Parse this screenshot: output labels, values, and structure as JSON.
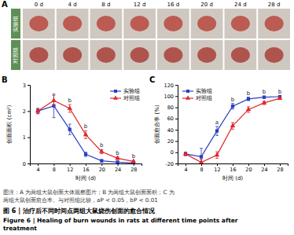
{
  "figure": {
    "panel_a": {
      "label": "A",
      "days": [
        "0 d",
        "4 d",
        "8 d",
        "12 d",
        "16 d",
        "20 d",
        "24 d",
        "28 d"
      ],
      "groups": [
        "实验组",
        "对照组"
      ]
    },
    "caption": {
      "note_lines": [
        "图注：A 为两组大鼠创面大体观察图片；B 为两组大鼠创面面积；C 为",
        "两组大鼠创面愈合率。与对照组比较，aP < 0.05，bP < 0.01"
      ],
      "title_cn": "图 6 | 治疗后不同时间点两组大鼠烧伤创面的愈合情况",
      "title_en_lines": [
        "Figure 6 | Healing of burn wounds in rats at different time points after",
        "treatment"
      ]
    }
  },
  "chart_data": [
    {
      "type": "line",
      "label": "B",
      "x_label": "时间 (d)",
      "y_label": "创面面积 (cm²)",
      "x": [
        4,
        8,
        12,
        16,
        20,
        24,
        28
      ],
      "xlim": [
        2,
        30
      ],
      "xticks": [
        4,
        8,
        12,
        16,
        20,
        24,
        28
      ],
      "ylim": [
        0,
        3
      ],
      "yticks": [
        0,
        1,
        2,
        3
      ],
      "legend": "top-right",
      "series": [
        {
          "name": "实验组",
          "color": "#2a3fc4",
          "marker": "square",
          "values": [
            2.0,
            2.2,
            1.3,
            0.35,
            0.1,
            0.05,
            0.02
          ],
          "errors": [
            0.1,
            0.45,
            0.2,
            0.08,
            0.05,
            0.03,
            0.02
          ]
        },
        {
          "name": "对照组",
          "color": "#e0262a",
          "marker": "triangle",
          "values": [
            2.0,
            2.4,
            2.1,
            1.1,
            0.45,
            0.2,
            0.08
          ],
          "errors": [
            0.1,
            0.2,
            0.15,
            0.15,
            0.08,
            0.05,
            0.03
          ]
        }
      ],
      "annotations": [
        {
          "x": 12,
          "text": "b"
        },
        {
          "x": 16,
          "text": "b"
        },
        {
          "x": 20,
          "text": "b"
        },
        {
          "x": 24,
          "text": "b"
        },
        {
          "x": 28,
          "text": "b"
        }
      ]
    },
    {
      "type": "line",
      "label": "C",
      "x_label": "时间 (d)",
      "y_label": "创面愈合率 (%)",
      "x": [
        4,
        8,
        12,
        16,
        20,
        24,
        28
      ],
      "xlim": [
        2,
        30
      ],
      "xticks": [
        4,
        8,
        12,
        16,
        20,
        24,
        28
      ],
      "ylim": [
        -20,
        120
      ],
      "yticks": [
        -20,
        0,
        20,
        40,
        60,
        80,
        100,
        120
      ],
      "legend": "top-left",
      "series": [
        {
          "name": "实验组",
          "color": "#2a3fc4",
          "marker": "square",
          "values": [
            -3,
            -8,
            38,
            82,
            95,
            98,
            99
          ],
          "errors": [
            3,
            15,
            8,
            5,
            3,
            2,
            1
          ]
        },
        {
          "name": "对照组",
          "color": "#e0262a",
          "marker": "triangle",
          "values": [
            -3,
            -18,
            -5,
            47,
            76,
            88,
            96
          ],
          "errors": [
            3,
            6,
            6,
            6,
            5,
            3,
            2
          ]
        }
      ],
      "annotations": [
        {
          "x": 12,
          "text": "a"
        },
        {
          "x": 16,
          "text": "b"
        },
        {
          "x": 20,
          "text": "b"
        },
        {
          "x": 24,
          "text": "b"
        },
        {
          "x": 28,
          "text": "b"
        }
      ]
    }
  ]
}
